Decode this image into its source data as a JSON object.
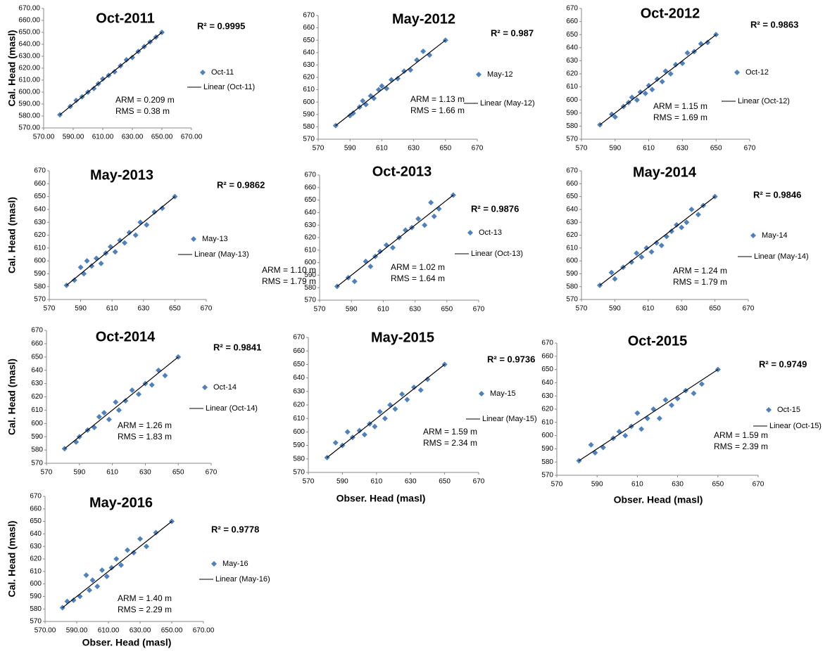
{
  "chart_data": [
    {
      "type": "scatter",
      "title": "Oct-2011",
      "ylabel": "Cal. Head (masl)",
      "xlim": [
        570,
        670
      ],
      "ylim": [
        570,
        670
      ],
      "xticks": [
        {
          "value": 570,
          "label": "570.00"
        },
        {
          "value": 590,
          "label": "590.00"
        },
        {
          "value": 610,
          "label": "610.00"
        },
        {
          "value": 630,
          "label": "630.00"
        },
        {
          "value": 650,
          "label": "650.00"
        },
        {
          "value": 670,
          "label": "670.00"
        }
      ],
      "yticks": [
        {
          "value": 570,
          "label": "570.00"
        },
        {
          "value": 580,
          "label": "580.00"
        },
        {
          "value": 590,
          "label": "590.00"
        },
        {
          "value": 600,
          "label": "600.00"
        },
        {
          "value": 610,
          "label": "610.00"
        },
        {
          "value": 620,
          "label": "620.00"
        },
        {
          "value": 630,
          "label": "630.00"
        },
        {
          "value": 640,
          "label": "640.00"
        },
        {
          "value": 650,
          "label": "650.00"
        },
        {
          "value": 660,
          "label": "660.00"
        },
        {
          "value": 670,
          "label": "670.00"
        }
      ],
      "annotations": [
        "R² = 0.9995",
        "ARM = 0.209 m",
        "RMS = 0.38 m"
      ],
      "series": [
        {
          "name": "Oct-11",
          "color": "#4f81bd",
          "style": "markers",
          "x": [
            581,
            588,
            592,
            596,
            600,
            604,
            607,
            610,
            614,
            618,
            622,
            626,
            630,
            634,
            638,
            642,
            646,
            650
          ],
          "values": [
            581,
            588,
            593,
            596,
            600,
            603,
            607,
            611,
            614,
            617,
            622,
            627,
            629,
            634,
            638,
            642,
            646,
            650
          ]
        },
        {
          "name": "Linear (Oct-11)",
          "color": "#000000",
          "style": "line",
          "x": [
            581,
            650
          ],
          "values": [
            581,
            650
          ]
        }
      ]
    },
    {
      "type": "scatter",
      "title": "May-2012",
      "xlim": [
        570,
        670
      ],
      "ylim": [
        570,
        670
      ],
      "xticks": [
        570,
        590,
        610,
        630,
        650,
        670
      ],
      "yticks": [
        570,
        580,
        590,
        600,
        610,
        620,
        630,
        640,
        650,
        660,
        670
      ],
      "annotations": [
        "R² = 0.987",
        "ARM = 1.13 m",
        "RMS = 1.66 m"
      ],
      "series": [
        {
          "name": "May-12",
          "color": "#4f81bd",
          "style": "markers",
          "x": [
            581,
            590,
            592,
            596,
            598,
            600,
            603,
            605,
            608,
            610,
            613,
            616,
            620,
            624,
            628,
            632,
            636,
            640,
            650
          ],
          "values": [
            581,
            589,
            591,
            596,
            601,
            598,
            605,
            603,
            610,
            613,
            611,
            618,
            619,
            625,
            626,
            634,
            641,
            638,
            650
          ]
        },
        {
          "name": "Linear (May-12)",
          "color": "#000000",
          "style": "line",
          "x": [
            581,
            650
          ],
          "values": [
            581,
            650
          ]
        }
      ]
    },
    {
      "type": "scatter",
      "title": "Oct-2012",
      "xlim": [
        570,
        670
      ],
      "ylim": [
        570,
        670
      ],
      "xticks": [
        570,
        590,
        610,
        630,
        650,
        670
      ],
      "yticks": [
        570,
        580,
        590,
        600,
        610,
        620,
        630,
        640,
        650,
        660,
        670
      ],
      "annotations": [
        "R² = 0.9863",
        "ARM = 1.15 m",
        "RMS = 1.69 m"
      ],
      "series": [
        {
          "name": "Oct-12",
          "color": "#4f81bd",
          "style": "markers",
          "x": [
            581,
            588,
            590,
            595,
            598,
            600,
            603,
            605,
            608,
            610,
            612,
            615,
            618,
            620,
            623,
            626,
            630,
            633,
            637,
            641,
            645,
            650
          ],
          "values": [
            581,
            589,
            587,
            595,
            598,
            602,
            600,
            606,
            605,
            611,
            608,
            616,
            614,
            622,
            620,
            627,
            628,
            636,
            637,
            643,
            644,
            650
          ]
        },
        {
          "name": "Linear (Oct-12)",
          "color": "#000000",
          "style": "line",
          "x": [
            581,
            650
          ],
          "values": [
            581,
            650
          ]
        }
      ]
    },
    {
      "type": "scatter",
      "title": "May-2013",
      "ylabel": "Cal. Head (masl)",
      "xlim": [
        570,
        670
      ],
      "ylim": [
        570,
        670
      ],
      "xticks": [
        570,
        590,
        610,
        630,
        650,
        670
      ],
      "yticks": [
        570,
        580,
        590,
        600,
        610,
        620,
        630,
        640,
        650,
        660,
        670
      ],
      "annotations": [
        "R² = 0.9862",
        "ARM = 1.10 m",
        "RMS = 1.79 m"
      ],
      "series": [
        {
          "name": "May-13",
          "color": "#4f81bd",
          "style": "markers",
          "x": [
            581,
            586,
            590,
            592,
            594,
            597,
            600,
            603,
            606,
            609,
            612,
            615,
            618,
            621,
            625,
            628,
            632,
            637,
            642,
            650
          ],
          "values": [
            581,
            585,
            595,
            590,
            600,
            596,
            602,
            598,
            606,
            611,
            607,
            616,
            614,
            622,
            620,
            630,
            628,
            638,
            641,
            650
          ]
        },
        {
          "name": "Linear (May-13)",
          "color": "#000000",
          "style": "line",
          "x": [
            581,
            650
          ],
          "values": [
            581,
            650
          ]
        }
      ]
    },
    {
      "type": "scatter",
      "title": "Oct-2013",
      "xlim": [
        570,
        670
      ],
      "ylim": [
        570,
        670
      ],
      "xticks": [
        570,
        590,
        610,
        630,
        650,
        670
      ],
      "yticks": [
        570,
        580,
        590,
        600,
        610,
        620,
        630,
        640,
        650,
        660,
        670
      ],
      "annotations": [
        "R² = 0.9876",
        "ARM = 1.02 m",
        "RMS = 1.64 m"
      ],
      "series": [
        {
          "name": "Oct-13",
          "color": "#4f81bd",
          "style": "markers",
          "x": [
            581,
            588,
            592,
            599,
            602,
            605,
            608,
            612,
            616,
            620,
            624,
            628,
            632,
            636,
            640,
            642,
            645,
            654
          ],
          "values": [
            581,
            588,
            585,
            601,
            597,
            605,
            609,
            614,
            612,
            620,
            626,
            628,
            635,
            630,
            648,
            637,
            643,
            654
          ]
        },
        {
          "name": "Linear (Oct-13)",
          "color": "#000000",
          "style": "line",
          "x": [
            581,
            654
          ],
          "values": [
            581,
            654
          ]
        }
      ]
    },
    {
      "type": "scatter",
      "title": "May-2014",
      "xlim": [
        570,
        670
      ],
      "ylim": [
        570,
        670
      ],
      "xticks": [
        570,
        590,
        610,
        630,
        650,
        670
      ],
      "yticks": [
        570,
        580,
        590,
        600,
        610,
        620,
        630,
        640,
        650,
        660,
        670
      ],
      "annotations": [
        "R² = 0.9846",
        "ARM = 1.24 m",
        "RMS = 1.79 m"
      ],
      "series": [
        {
          "name": "May-14",
          "color": "#4f81bd",
          "style": "markers",
          "x": [
            581,
            588,
            590,
            595,
            600,
            603,
            606,
            609,
            612,
            615,
            618,
            621,
            624,
            627,
            630,
            633,
            636,
            640,
            643,
            650
          ],
          "values": [
            581,
            591,
            586,
            595,
            599,
            606,
            603,
            610,
            607,
            614,
            612,
            619,
            623,
            628,
            626,
            630,
            640,
            636,
            643,
            650
          ]
        },
        {
          "name": "Linear (May-14)",
          "color": "#000000",
          "style": "line",
          "x": [
            581,
            650
          ],
          "values": [
            581,
            650
          ]
        }
      ]
    },
    {
      "type": "scatter",
      "title": "Oct-2014",
      "ylabel": "Cal. Head (masl)",
      "xlim": [
        570,
        670
      ],
      "ylim": [
        570,
        670
      ],
      "xticks": [
        570,
        590,
        610,
        630,
        650,
        670
      ],
      "yticks": [
        570,
        580,
        590,
        600,
        610,
        620,
        630,
        640,
        650,
        660,
        670
      ],
      "annotations": [
        "R² = 0.9841",
        "ARM = 1.26 m",
        "RMS = 1.83 m"
      ],
      "series": [
        {
          "name": "Oct-14",
          "color": "#4f81bd",
          "style": "markers",
          "x": [
            581,
            588,
            590,
            595,
            599,
            602,
            605,
            608,
            612,
            614,
            618,
            622,
            626,
            630,
            634,
            638,
            642,
            650
          ],
          "values": [
            581,
            586,
            590,
            595,
            597,
            605,
            608,
            603,
            616,
            610,
            617,
            625,
            622,
            630,
            629,
            640,
            636,
            650
          ]
        },
        {
          "name": "Linear (Oct-14)",
          "color": "#000000",
          "style": "line",
          "x": [
            581,
            650
          ],
          "values": [
            581,
            650
          ]
        }
      ]
    },
    {
      "type": "scatter",
      "title": "May-2015",
      "xlabel": "Obser. Head (masl)",
      "xlim": [
        570,
        670
      ],
      "ylim": [
        570,
        670
      ],
      "xticks": [
        570,
        590,
        610,
        630,
        650,
        670
      ],
      "yticks": [
        570,
        580,
        590,
        600,
        610,
        620,
        630,
        640,
        650,
        660,
        670
      ],
      "annotations": [
        "R² = 0.9736",
        "ARM = 1.59 m",
        "RMS = 2.34 m"
      ],
      "series": [
        {
          "name": "May-15",
          "color": "#4f81bd",
          "style": "markers",
          "x": [
            581,
            586,
            590,
            593,
            596,
            600,
            603,
            606,
            609,
            612,
            615,
            618,
            621,
            625,
            628,
            632,
            636,
            640,
            650
          ],
          "values": [
            581,
            592,
            590,
            600,
            596,
            601,
            598,
            606,
            604,
            615,
            610,
            620,
            617,
            628,
            624,
            633,
            631,
            639,
            650
          ]
        },
        {
          "name": "Linear (May-15)",
          "color": "#000000",
          "style": "line",
          "x": [
            581,
            650
          ],
          "values": [
            581,
            650
          ]
        }
      ]
    },
    {
      "type": "scatter",
      "title": "Oct-2015",
      "xlabel": "Obser. Head (masl)",
      "xlim": [
        570,
        670
      ],
      "ylim": [
        570,
        670
      ],
      "xticks": [
        570,
        590,
        610,
        630,
        650,
        670
      ],
      "yticks": [
        570,
        580,
        590,
        600,
        610,
        620,
        630,
        640,
        650,
        660,
        670
      ],
      "annotations": [
        "R² = 0.9749",
        "ARM = 1.59 m",
        "RMS = 2.39 m"
      ],
      "series": [
        {
          "name": "Oct-15",
          "color": "#4f81bd",
          "style": "markers",
          "x": [
            581,
            587,
            589,
            593,
            598,
            601,
            604,
            607,
            610,
            612,
            615,
            618,
            621,
            624,
            627,
            630,
            634,
            638,
            642,
            650
          ],
          "values": [
            581,
            593,
            587,
            591,
            598,
            603,
            600,
            607,
            617,
            605,
            613,
            620,
            613,
            627,
            623,
            628,
            634,
            632,
            639,
            650
          ]
        },
        {
          "name": "Linear (Oct-15)",
          "color": "#000000",
          "style": "line",
          "x": [
            581,
            650
          ],
          "values": [
            581,
            650
          ]
        }
      ]
    },
    {
      "type": "scatter",
      "title": "May-2016",
      "ylabel": "Cal. Head (masl)",
      "xlabel": "Obser. Head (masl)",
      "xlim": [
        570,
        670
      ],
      "ylim": [
        570,
        670
      ],
      "xticks": [
        {
          "value": 570,
          "label": "570.00"
        },
        {
          "value": 590,
          "label": "590.00"
        },
        {
          "value": 610,
          "label": "610.00"
        },
        {
          "value": 630,
          "label": "630.00"
        },
        {
          "value": 650,
          "label": "650.00"
        },
        {
          "value": 670,
          "label": "670.00"
        }
      ],
      "yticks": [
        570,
        580,
        590,
        600,
        610,
        620,
        630,
        640,
        650,
        660,
        670
      ],
      "annotations": [
        "R² = 0.9778",
        "ARM = 1.40 m",
        "RMS = 2.29 m"
      ],
      "series": [
        {
          "name": "May-16",
          "color": "#4f81bd",
          "style": "markers",
          "x": [
            581,
            584,
            588,
            592,
            596,
            598,
            600,
            603,
            606,
            609,
            612,
            615,
            618,
            622,
            626,
            630,
            634,
            640,
            650
          ],
          "values": [
            581,
            586,
            587,
            590,
            607,
            595,
            603,
            598,
            611,
            606,
            613,
            620,
            615,
            627,
            625,
            636,
            630,
            641,
            650
          ]
        },
        {
          "name": "Linear (May-16)",
          "color": "#000000",
          "style": "line",
          "x": [
            581,
            650
          ],
          "values": [
            581,
            650
          ]
        }
      ]
    }
  ]
}
